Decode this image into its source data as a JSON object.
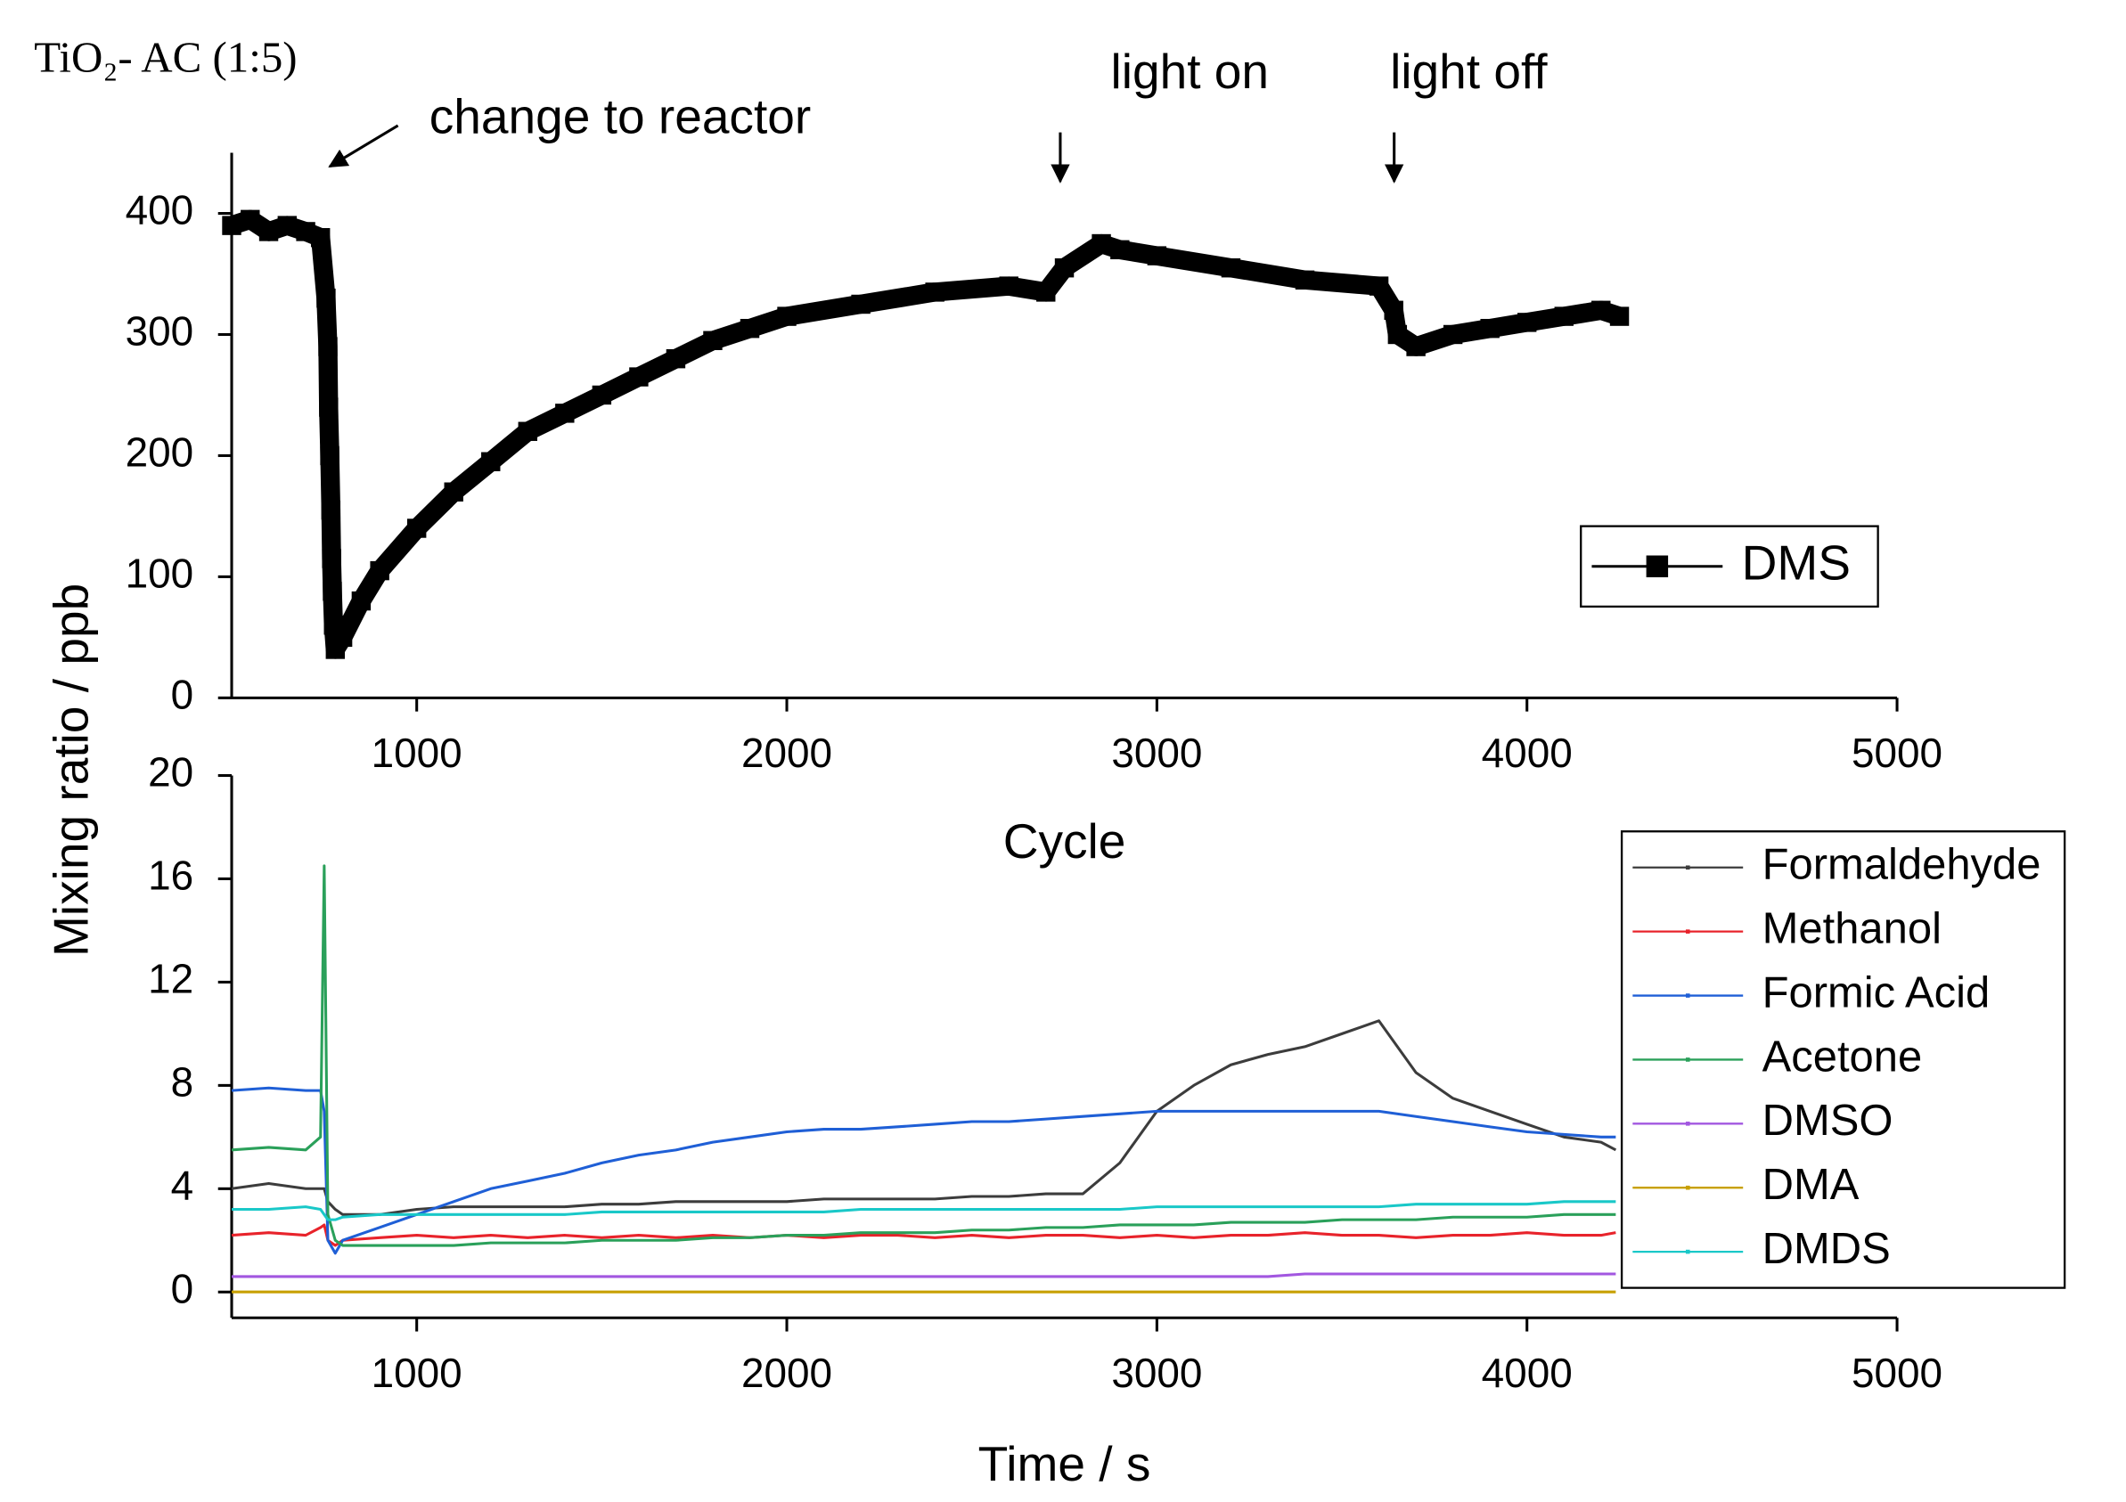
{
  "chart_data": [
    {
      "type": "line",
      "title": "TiO₂- AC (1:5)",
      "ylabel": "Mixing ratio / ppb",
      "xlabel": "Cycle",
      "annotations": [
        "change to reactor",
        "light on",
        "light off"
      ],
      "xlim": [
        500,
        5000
      ],
      "xticks": [
        1000,
        2000,
        3000,
        4000,
        5000
      ],
      "ylim": [
        0,
        450
      ],
      "yticks": [
        0,
        100,
        200,
        300,
        400
      ],
      "legend": "right",
      "x": [
        500,
        550,
        600,
        650,
        700,
        740,
        755,
        760,
        762,
        765,
        768,
        770,
        772,
        775,
        780,
        800,
        850,
        900,
        1000,
        1100,
        1200,
        1300,
        1400,
        1500,
        1600,
        1700,
        1800,
        1900,
        2000,
        2200,
        2400,
        2600,
        2700,
        2750,
        2850,
        2900,
        3000,
        3200,
        3400,
        3600,
        3640,
        3650,
        3700,
        3800,
        3900,
        4000,
        4100,
        4200,
        4250
      ],
      "series": [
        {
          "name": "DMS",
          "color": "#000000",
          "values": [
            390,
            395,
            385,
            390,
            385,
            380,
            330,
            290,
            240,
            200,
            155,
            115,
            88,
            60,
            40,
            50,
            80,
            105,
            140,
            170,
            195,
            220,
            235,
            250,
            265,
            280,
            295,
            305,
            315,
            325,
            335,
            340,
            335,
            355,
            375,
            370,
            365,
            355,
            345,
            340,
            320,
            300,
            290,
            300,
            305,
            310,
            315,
            320,
            315
          ]
        }
      ]
    },
    {
      "type": "line",
      "xlabel": "Time / s",
      "xlim": [
        500,
        5000
      ],
      "xticks": [
        1000,
        2000,
        3000,
        4000,
        5000
      ],
      "ylim": [
        -1,
        20
      ],
      "yticks": [
        0,
        4,
        8,
        12,
        16,
        20
      ],
      "legend": "right",
      "x": [
        500,
        600,
        700,
        740,
        750,
        760,
        780,
        800,
        900,
        1000,
        1100,
        1200,
        1300,
        1400,
        1500,
        1600,
        1700,
        1800,
        1900,
        2000,
        2100,
        2200,
        2300,
        2400,
        2500,
        2600,
        2700,
        2800,
        2900,
        3000,
        3100,
        3200,
        3300,
        3400,
        3500,
        3600,
        3700,
        3800,
        3900,
        4000,
        4100,
        4200,
        4240
      ],
      "series": [
        {
          "name": "Formaldehyde",
          "color": "#3c3c3c",
          "values": [
            4,
            4.2,
            4,
            4,
            4,
            3.5,
            3.2,
            3,
            3,
            3.2,
            3.3,
            3.3,
            3.3,
            3.3,
            3.4,
            3.4,
            3.5,
            3.5,
            3.5,
            3.5,
            3.6,
            3.6,
            3.6,
            3.6,
            3.7,
            3.7,
            3.8,
            3.8,
            5,
            7,
            8,
            8.8,
            9.2,
            9.5,
            10,
            10.5,
            8.5,
            7.5,
            7,
            6.5,
            6,
            5.8,
            5.5
          ]
        },
        {
          "name": "Methanol",
          "color": "#e8232b",
          "values": [
            2.2,
            2.3,
            2.2,
            2.5,
            2.6,
            2,
            1.8,
            2,
            2.1,
            2.2,
            2.1,
            2.2,
            2.1,
            2.2,
            2.1,
            2.2,
            2.1,
            2.2,
            2.1,
            2.2,
            2.1,
            2.2,
            2.2,
            2.1,
            2.2,
            2.1,
            2.2,
            2.2,
            2.1,
            2.2,
            2.1,
            2.2,
            2.2,
            2.3,
            2.2,
            2.2,
            2.1,
            2.2,
            2.2,
            2.3,
            2.2,
            2.2,
            2.3
          ]
        },
        {
          "name": "Formic Acid",
          "color": "#1f5fd6",
          "values": [
            7.8,
            7.9,
            7.8,
            7.8,
            7,
            2,
            1.5,
            2,
            2.5,
            3,
            3.5,
            4,
            4.3,
            4.6,
            5,
            5.3,
            5.5,
            5.8,
            6,
            6.2,
            6.3,
            6.3,
            6.4,
            6.5,
            6.6,
            6.6,
            6.7,
            6.8,
            6.9,
            7,
            7,
            7,
            7,
            7,
            7,
            7,
            6.8,
            6.6,
            6.4,
            6.2,
            6.1,
            6,
            6
          ]
        },
        {
          "name": "Acetone",
          "color": "#2aa05a",
          "values": [
            5.5,
            5.6,
            5.5,
            6,
            16.5,
            3,
            2,
            1.8,
            1.8,
            1.8,
            1.8,
            1.9,
            1.9,
            1.9,
            2,
            2,
            2,
            2.1,
            2.1,
            2.2,
            2.2,
            2.3,
            2.3,
            2.3,
            2.4,
            2.4,
            2.5,
            2.5,
            2.6,
            2.6,
            2.6,
            2.7,
            2.7,
            2.7,
            2.8,
            2.8,
            2.8,
            2.9,
            2.9,
            2.9,
            3,
            3,
            3
          ]
        },
        {
          "name": "DMSO",
          "color": "#a257e0",
          "values": [
            0.6,
            0.6,
            0.6,
            0.6,
            0.6,
            0.6,
            0.6,
            0.6,
            0.6,
            0.6,
            0.6,
            0.6,
            0.6,
            0.6,
            0.6,
            0.6,
            0.6,
            0.6,
            0.6,
            0.6,
            0.6,
            0.6,
            0.6,
            0.6,
            0.6,
            0.6,
            0.6,
            0.6,
            0.6,
            0.6,
            0.6,
            0.6,
            0.6,
            0.7,
            0.7,
            0.7,
            0.7,
            0.7,
            0.7,
            0.7,
            0.7,
            0.7,
            0.7
          ]
        },
        {
          "name": "DMA",
          "color": "#c8a000",
          "values": [
            0,
            0,
            0,
            0,
            0,
            0,
            0,
            0,
            0,
            0,
            0,
            0,
            0,
            0,
            0,
            0,
            0,
            0,
            0,
            0,
            0,
            0,
            0,
            0,
            0,
            0,
            0,
            0,
            0,
            0,
            0,
            0,
            0,
            0,
            0,
            0,
            0,
            0,
            0,
            0,
            0,
            0,
            0
          ]
        },
        {
          "name": "DMDS",
          "color": "#19c8c8",
          "values": [
            3.2,
            3.2,
            3.3,
            3.2,
            3,
            2.8,
            2.8,
            2.9,
            3,
            3,
            3,
            3,
            3,
            3,
            3.1,
            3.1,
            3.1,
            3.1,
            3.1,
            3.1,
            3.1,
            3.2,
            3.2,
            3.2,
            3.2,
            3.2,
            3.2,
            3.2,
            3.2,
            3.3,
            3.3,
            3.3,
            3.3,
            3.3,
            3.3,
            3.3,
            3.4,
            3.4,
            3.4,
            3.4,
            3.5,
            3.5,
            3.5
          ]
        }
      ]
    }
  ]
}
